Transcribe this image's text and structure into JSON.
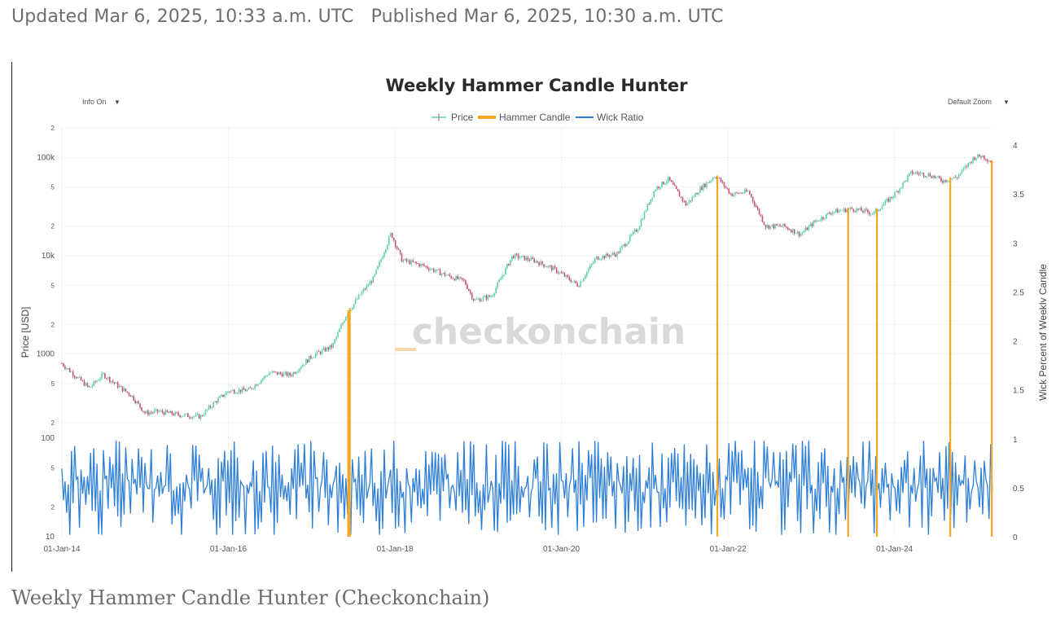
{
  "article": {
    "updated": "Updated Mar 6, 2025, 10:33 a.m. UTC",
    "published": "Published Mar 6, 2025, 10:30 a.m. UTC",
    "caption": "Weekly Hammer Candle Hunter (Checkonchain)"
  },
  "controls": {
    "info_label": "Info On",
    "zoom_label": "Default Zoom",
    "caret": "▼"
  },
  "watermark": "checkonchain",
  "chart_data": {
    "type": "line",
    "title": "Weekly Hammer Candle Hunter",
    "legend": [
      "Price",
      "Hammer Candle",
      "Wick Ratio"
    ],
    "legend_placement": "top-center",
    "grid": true,
    "x_ticks": [
      "01-Jan-14",
      "01-Jan-16",
      "01-Jan-18",
      "01-Jan-20",
      "01-Jan-22",
      "01-Jan-24"
    ],
    "xlim": [
      "2014-01-01",
      "2025-03-06"
    ],
    "y_left_upper": {
      "label": "Price [USD]",
      "scale": "log",
      "ylim": [
        150,
        200000
      ],
      "ticks": [
        {
          "v": 200,
          "t": "2"
        },
        {
          "v": 500,
          "t": "5"
        },
        {
          "v": 1000,
          "t": "1000"
        },
        {
          "v": 2000,
          "t": "2"
        },
        {
          "v": 5000,
          "t": "5"
        },
        {
          "v": 10000,
          "t": "10k"
        },
        {
          "v": 20000,
          "t": "2"
        },
        {
          "v": 50000,
          "t": "5"
        },
        {
          "v": 100000,
          "t": "100k"
        },
        {
          "v": 200000,
          "t": "2"
        }
      ]
    },
    "y_left_lower": {
      "scale": "log",
      "ylim": [
        10,
        100
      ],
      "ticks": [
        {
          "v": 10,
          "t": "10"
        },
        {
          "v": 20,
          "t": "2"
        },
        {
          "v": 50,
          "t": "5"
        },
        {
          "v": 100,
          "t": "100"
        }
      ]
    },
    "y_right": {
      "label": "Wick Percent of Weekly Candle",
      "ylim": [
        0,
        4
      ],
      "ticks": [
        "0",
        "0.5",
        "1",
        "1.5",
        "2",
        "2.5",
        "3",
        "3.5",
        "4"
      ]
    },
    "colors": {
      "up": "#5fd1a8",
      "down": "#c4547a",
      "hammer": "#f5a623",
      "wick": "#2f7fd6"
    },
    "price_series": [
      [
        "2014-01-01",
        800
      ],
      [
        "2014-03-01",
        600
      ],
      [
        "2014-05-01",
        450
      ],
      [
        "2014-07-01",
        620
      ],
      [
        "2014-09-01",
        480
      ],
      [
        "2014-11-01",
        380
      ],
      [
        "2015-01-01",
        250
      ],
      [
        "2015-03-01",
        260
      ],
      [
        "2015-06-01",
        240
      ],
      [
        "2015-09-01",
        230
      ],
      [
        "2015-11-01",
        320
      ],
      [
        "2016-01-01",
        420
      ],
      [
        "2016-04-01",
        430
      ],
      [
        "2016-07-01",
        650
      ],
      [
        "2016-10-01",
        610
      ],
      [
        "2017-01-01",
        950
      ],
      [
        "2017-04-01",
        1200
      ],
      [
        "2017-06-01",
        2500
      ],
      [
        "2017-08-01",
        4000
      ],
      [
        "2017-10-01",
        6000
      ],
      [
        "2017-12-15",
        17000
      ],
      [
        "2018-02-01",
        9000
      ],
      [
        "2018-05-01",
        8000
      ],
      [
        "2018-08-01",
        6500
      ],
      [
        "2018-11-01",
        5500
      ],
      [
        "2018-12-15",
        3500
      ],
      [
        "2019-03-01",
        3900
      ],
      [
        "2019-06-01",
        10000
      ],
      [
        "2019-09-01",
        9000
      ],
      [
        "2019-12-01",
        7300
      ],
      [
        "2020-03-15",
        5000
      ],
      [
        "2020-06-01",
        9500
      ],
      [
        "2020-09-01",
        10500
      ],
      [
        "2020-12-01",
        19000
      ],
      [
        "2021-02-15",
        48000
      ],
      [
        "2021-04-15",
        60000
      ],
      [
        "2021-07-01",
        33000
      ],
      [
        "2021-09-01",
        48000
      ],
      [
        "2021-11-08",
        66000
      ],
      [
        "2022-01-15",
        42000
      ],
      [
        "2022-04-01",
        45000
      ],
      [
        "2022-06-15",
        20000
      ],
      [
        "2022-09-01",
        20000
      ],
      [
        "2022-11-15",
        16500
      ],
      [
        "2023-01-15",
        22000
      ],
      [
        "2023-04-01",
        28000
      ],
      [
        "2023-07-01",
        30000
      ],
      [
        "2023-10-01",
        27000
      ],
      [
        "2024-01-01",
        42000
      ],
      [
        "2024-03-15",
        70000
      ],
      [
        "2024-06-01",
        67000
      ],
      [
        "2024-08-01",
        58000
      ],
      [
        "2024-10-01",
        63000
      ],
      [
        "2024-12-15",
        100000
      ],
      [
        "2025-01-20",
        104000
      ],
      [
        "2025-03-06",
        89000
      ]
    ],
    "hammer_candles": [
      "2017-06-10",
      "2017-06-17",
      "2021-11-15",
      "2023-06-12",
      "2023-10-16",
      "2024-09-02",
      "2025-03-03"
    ]
  }
}
